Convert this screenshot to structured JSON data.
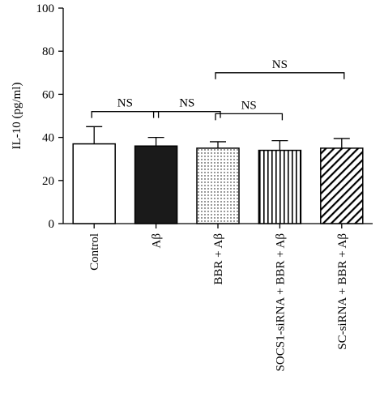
{
  "chart_data": {
    "type": "bar",
    "ylabel": "IL-10 (pg/ml)",
    "xlabel": "",
    "ylim": [
      0,
      100
    ],
    "yticks": [
      0,
      20,
      40,
      60,
      80,
      100
    ],
    "grid": false,
    "categories": [
      "Control",
      "Aβ",
      "BBR + Aβ",
      "SOCS1-siRNA + BBR + Aβ",
      "SC-siRNA + BBR + Aβ"
    ],
    "values": [
      37,
      36,
      35,
      34,
      35
    ],
    "error_upper": [
      45,
      40,
      38,
      38.5,
      39.5
    ],
    "fills": [
      "white",
      "black",
      "dots",
      "vertical-stripes",
      "diagonal-stripes"
    ],
    "comparisons": [
      {
        "from": 0,
        "to": 1,
        "label": "NS",
        "y": 52
      },
      {
        "from": 1,
        "to": 2,
        "label": "NS",
        "y": 52
      },
      {
        "from": 2,
        "to": 3,
        "label": "NS",
        "y": 51
      },
      {
        "from": 2,
        "to": 4,
        "label": "NS",
        "y": 70
      }
    ]
  }
}
